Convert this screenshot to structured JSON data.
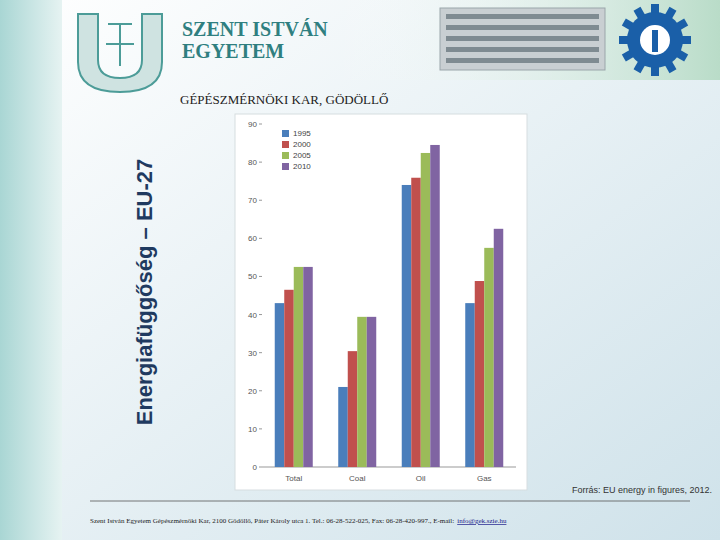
{
  "header": {
    "university": [
      "SZENT ISTVÁN",
      "EGYETEM"
    ],
    "faculty": "GÉPÉSZMÉRNÖKI KAR, GÖDÖLLŐ"
  },
  "slide_title": "Energiafüggőség – EU-27",
  "source": "Forrás: EU energy in figures, 2012.",
  "footer": {
    "text": "Szent István Egyetem Gépészmérnöki Kar, 2100 Gödöllő, Páter Károly utca 1. Tel.: 06-28-522-025, Fax: 06-28-420-997., E-mail:",
    "email": "info@gek.szie.hu"
  },
  "chart_data": {
    "type": "bar",
    "categories": [
      "Total",
      "Coal",
      "Oil",
      "Gas"
    ],
    "series": [
      {
        "name": "1995",
        "color": "#4a7ebb",
        "values": [
          43,
          21,
          74,
          43
        ]
      },
      {
        "name": "2000",
        "color": "#c0504d",
        "values": [
          46.5,
          30.4,
          75.9,
          48.8
        ]
      },
      {
        "name": "2005",
        "color": "#9bbb59",
        "values": [
          52.5,
          39.4,
          82.4,
          57.5
        ]
      },
      {
        "name": "2010",
        "color": "#8064a2",
        "values": [
          52.5,
          39.4,
          84.5,
          62.5
        ]
      }
    ],
    "ylim": [
      0,
      90
    ],
    "yticks": [
      0,
      10,
      20,
      30,
      40,
      50,
      60,
      70,
      80,
      90
    ],
    "grid": false,
    "legend": "top-left"
  }
}
